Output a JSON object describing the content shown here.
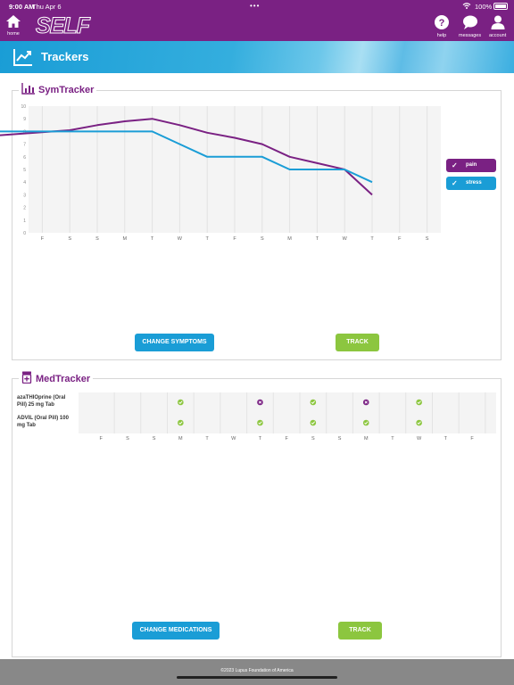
{
  "status": {
    "time": "9:00 AM",
    "date": "Thu Apr 6",
    "dots": "•••",
    "battery": "100%"
  },
  "nav": {
    "logo": "SELF",
    "home": "home",
    "help": "help",
    "messages": "messages",
    "account": "account"
  },
  "page": {
    "title": "Trackers"
  },
  "symtracker": {
    "title": "SymTracker",
    "change_label": "CHANGE SYMPTOMS",
    "track_label": "TRACK",
    "legend": [
      {
        "name": "pain",
        "color": "#7a2183"
      },
      {
        "name": "stress",
        "color": "#1a9dd6"
      }
    ]
  },
  "chart_data": {
    "type": "line",
    "title": "SymTracker",
    "x": [
      "F",
      "S",
      "S",
      "M",
      "T",
      "W",
      "T",
      "F",
      "S",
      "M",
      "T",
      "W",
      "T",
      "F",
      "S"
    ],
    "ylim": [
      0,
      10
    ],
    "yticks": [
      0,
      1,
      2,
      3,
      4,
      5,
      6,
      7,
      8,
      9,
      10
    ],
    "grid": true,
    "legend_position": "right",
    "series": [
      {
        "name": "pain",
        "color": "#7a2183",
        "values": [
          7.7,
          8.1,
          8.5,
          8.8,
          9.0,
          8.5,
          7.9,
          7.5,
          7.0,
          6.0,
          5.5,
          5.0,
          3.0,
          null,
          null
        ]
      },
      {
        "name": "stress",
        "color": "#1a9dd6",
        "values": [
          8.0,
          8.0,
          8.0,
          8.0,
          8.0,
          7.0,
          6.0,
          6.0,
          6.0,
          5.0,
          5.0,
          5.0,
          4.0,
          null,
          null
        ]
      }
    ]
  },
  "medtracker": {
    "title": "MedTracker",
    "change_label": "CHANGE MEDICATIONS",
    "track_label": "TRACK",
    "days": [
      "F",
      "S",
      "S",
      "M",
      "T",
      "W",
      "T",
      "F",
      "S",
      "S",
      "M",
      "T",
      "W",
      "T",
      "F"
    ],
    "meds": [
      {
        "name": "azaTHIOprine (Oral Pill) 25 mg Tab",
        "marks": [
          "",
          "",
          "",
          "taken",
          "",
          "",
          "missed",
          "",
          "taken",
          "",
          "missed",
          "",
          "taken",
          "",
          ""
        ]
      },
      {
        "name": "ADVIL (Oral Pill) 100 mg Tab",
        "marks": [
          "",
          "",
          "",
          "taken",
          "",
          "",
          "taken",
          "",
          "taken",
          "",
          "taken",
          "",
          "taken",
          "",
          ""
        ]
      }
    ],
    "taken_color": "#8cc63f",
    "missed_color": "#7a2183"
  },
  "footer": {
    "copyright": "©2023 Lupus Foundation of America"
  }
}
